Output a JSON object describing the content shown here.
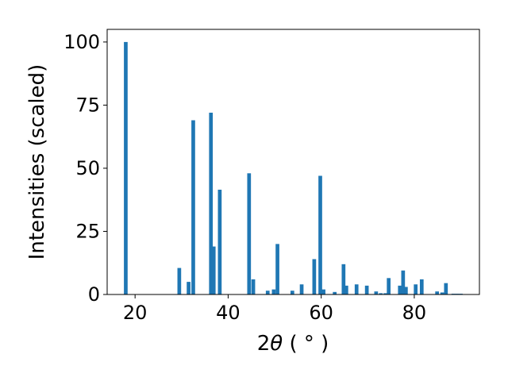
{
  "chart_data": {
    "type": "bar",
    "title": "",
    "xlabel_main": "2",
    "xlabel_symbol": "θ",
    "xlabel_unit": " ( ° )",
    "ylabel": "Intensities (scaled)",
    "xlim": [
      14,
      94
    ],
    "ylim": [
      0,
      105
    ],
    "xticks": [
      20,
      40,
      60,
      80
    ],
    "yticks": [
      0,
      25,
      50,
      75,
      100
    ],
    "grid": false,
    "bar_color": "#1f77b4",
    "bar_width": 0.8,
    "x": [
      18.0,
      29.5,
      31.5,
      32.5,
      36.3,
      36.9,
      38.2,
      44.5,
      45.4,
      48.5,
      49.8,
      50.6,
      53.8,
      55.8,
      58.5,
      59.8,
      60.5,
      62.9,
      64.8,
      65.4,
      67.6,
      69.8,
      71.8,
      72.8,
      73.8,
      74.5,
      76.9,
      77.6,
      78.2,
      80.3,
      81.6,
      84.9,
      86.0,
      86.8,
      88.4,
      89.2,
      90.0
    ],
    "values": [
      100,
      10.5,
      5,
      69,
      72,
      19,
      41.5,
      48,
      6,
      1.5,
      2,
      20,
      1.5,
      4,
      14,
      47,
      2,
      1,
      12,
      3.5,
      4,
      3.5,
      1.2,
      0.5,
      0.5,
      6.5,
      3.5,
      9.5,
      3,
      4,
      6,
      1.2,
      0.8,
      4.5,
      0.3,
      0.3,
      0.3
    ]
  }
}
